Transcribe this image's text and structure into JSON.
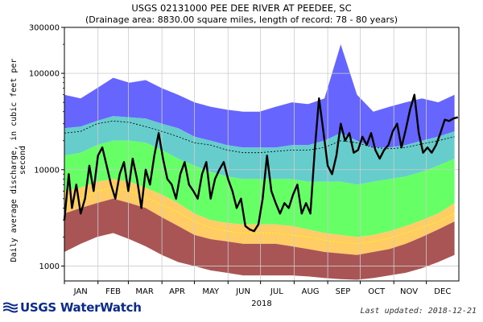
{
  "chart_data": {
    "type": "area",
    "title": "USGS 02131000 PEE DEE RIVER AT PEEDEE, SC",
    "subtitle": "(Drainage area: 8830.00 square miles, length of record: 78 - 80 years)",
    "ylabel": "Daily average discharge, in cubic feet per second",
    "xlabel": "2018",
    "y_scale": "log",
    "ylim": [
      700,
      300000
    ],
    "y_ticks": [
      "300000",
      "100000",
      "10000",
      "1000"
    ],
    "y_tick_values": [
      300000,
      100000,
      10000,
      1000
    ],
    "categories": [
      "JAN",
      "FEB",
      "MAR",
      "APR",
      "MAY",
      "JUN",
      "JUL",
      "AUG",
      "SEP",
      "OCT",
      "NOV",
      "DEC"
    ],
    "x_days": [
      1,
      16,
      31,
      46,
      61,
      76,
      91,
      106,
      121,
      136,
      151,
      166,
      181,
      196,
      211,
      226,
      241,
      256,
      271,
      286,
      301,
      316,
      331,
      346,
      361
    ],
    "percentile_bands": {
      "max": [
        60000,
        55000,
        70000,
        90000,
        80000,
        85000,
        70000,
        60000,
        50000,
        45000,
        42000,
        40000,
        40000,
        45000,
        50000,
        48000,
        55000,
        200000,
        60000,
        40000,
        45000,
        50000,
        55000,
        50000,
        60000
      ],
      "p90": [
        27000,
        28000,
        32000,
        36000,
        35000,
        34000,
        30000,
        27000,
        22000,
        20000,
        18000,
        17000,
        17000,
        17000,
        18000,
        18000,
        20000,
        24000,
        20000,
        17000,
        17000,
        18000,
        20000,
        22000,
        25000
      ],
      "p75": [
        14000,
        15000,
        18000,
        20000,
        20000,
        19000,
        16000,
        13000,
        11000,
        9500,
        8500,
        8000,
        8000,
        8000,
        8000,
        7500,
        7500,
        7500,
        7000,
        7500,
        8000,
        8500,
        9500,
        11000,
        13000
      ],
      "p25": [
        6000,
        6500,
        7500,
        8000,
        7500,
        6500,
        5500,
        4500,
        3500,
        3000,
        2800,
        2700,
        2700,
        2700,
        2600,
        2400,
        2200,
        2100,
        2000,
        2100,
        2300,
        2600,
        3000,
        3500,
        4500
      ],
      "p10": [
        3500,
        4000,
        4500,
        5000,
        4500,
        4000,
        3200,
        2600,
        2100,
        1900,
        1800,
        1700,
        1700,
        1700,
        1600,
        1500,
        1400,
        1350,
        1300,
        1400,
        1500,
        1700,
        2000,
        2400,
        2900
      ],
      "min": [
        1400,
        1700,
        2000,
        2200,
        1900,
        1600,
        1300,
        1100,
        1000,
        900,
        850,
        800,
        800,
        800,
        800,
        780,
        750,
        730,
        720,
        750,
        800,
        850,
        950,
        1100,
        1300
      ],
      "mean": [
        24000,
        25000,
        30000,
        32000,
        31000,
        28000,
        25000,
        22000,
        19000,
        18000,
        16000,
        15000,
        15000,
        15500,
        16000,
        16000,
        17000,
        20000,
        19000,
        17000,
        16500,
        17000,
        18500,
        20000,
        22000
      ],
      "median": [
        4500,
        5000,
        6000,
        6500,
        6000,
        5200,
        4300,
        3600,
        2900,
        2500,
        2300,
        2200,
        2200,
        2200,
        2100,
        2000,
        1850,
        1750,
        1700,
        1800,
        1950,
        2200,
        2500,
        2900,
        3500
      ]
    },
    "series": [
      {
        "name": "",
        "x": [
          1,
          5,
          8,
          12,
          16,
          20,
          24,
          28,
          32,
          36,
          40,
          44,
          48,
          52,
          56,
          60,
          64,
          68,
          72,
          76,
          80,
          84,
          88,
          92,
          96,
          100,
          104,
          108,
          112,
          116,
          120,
          124,
          128,
          132,
          136,
          140,
          144,
          148,
          152,
          156,
          160,
          164,
          168,
          172,
          176,
          180,
          184,
          188,
          192,
          196,
          200,
          204,
          208,
          212,
          216,
          220,
          224,
          228,
          232,
          236,
          240,
          244,
          248,
          252,
          256,
          260,
          264,
          268,
          272,
          276,
          280,
          284,
          288,
          292,
          296,
          300,
          304,
          308,
          312,
          316,
          320,
          324,
          328,
          332,
          336,
          340,
          344,
          348,
          352,
          356,
          360,
          364
        ],
        "values": [
          3000,
          9000,
          4000,
          7000,
          3500,
          5000,
          11000,
          6000,
          14000,
          17000,
          11000,
          7000,
          5000,
          9000,
          12000,
          6000,
          13000,
          8000,
          4000,
          10000,
          7000,
          14000,
          24000,
          13000,
          8000,
          7000,
          5000,
          9000,
          12000,
          7000,
          6000,
          5000,
          9000,
          12000,
          5000,
          8000,
          10000,
          12000,
          8000,
          6000,
          4000,
          5000,
          2600,
          2400,
          2300,
          2700,
          5000,
          14000,
          6000,
          4500,
          3500,
          4500,
          4000,
          5500,
          7000,
          3500,
          4500,
          3500,
          16000,
          55000,
          25000,
          11000,
          9000,
          14000,
          30000,
          20000,
          24000,
          15000,
          16000,
          22000,
          18000,
          24000,
          16000,
          13000,
          16000,
          18000,
          25000,
          30000,
          17000,
          26000,
          42000,
          60000,
          24000,
          15000,
          17000,
          15000,
          18000,
          24000,
          33000,
          32000,
          34000,
          35000
        ]
      }
    ],
    "colors": {
      "max_band": "#6666ff",
      "p90_band": "#66cccc",
      "p75_band": "#66ff66",
      "p25_band": "#ffcc66",
      "min_band": "#aa5555",
      "current": "#000000",
      "median": "#ffff00",
      "mean": "#000000"
    },
    "grid": true
  },
  "footer": {
    "logo_text": "USGS WaterWatch",
    "last_updated": "Last updated: 2018-12-21"
  }
}
